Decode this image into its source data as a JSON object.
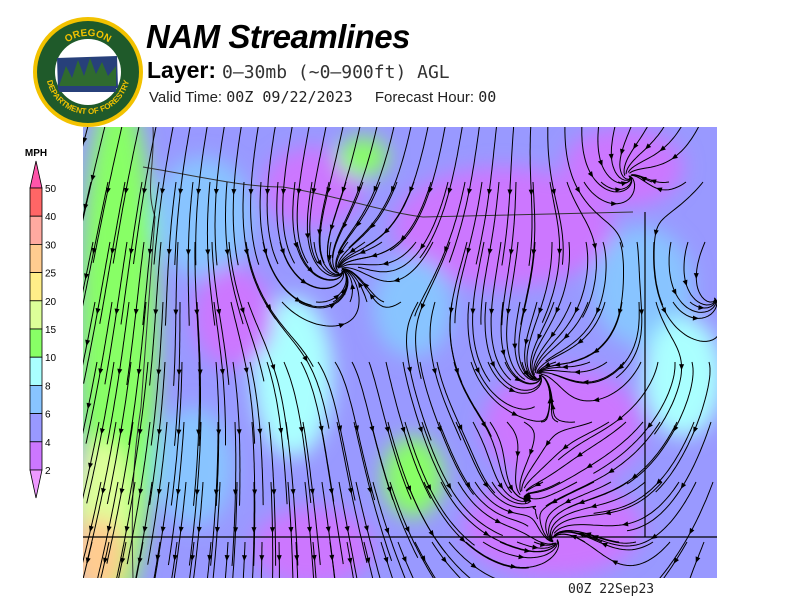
{
  "header": {
    "logo_text_top": "OREGON",
    "logo_text_bottom": "DEPARTMENT OF FORESTRY",
    "title": "NAM Streamlines",
    "layer_label": "Layer:",
    "layer_value": "0–30mb (~0–900ft) AGL",
    "valid_time_label": "Valid Time:",
    "valid_time_value": "00Z 09/22/2023",
    "forecast_hour_label": "Forecast Hour:",
    "forecast_hour_value": "00"
  },
  "legend": {
    "unit": "MPH",
    "levels": [
      "50",
      "40",
      "30",
      "25",
      "20",
      "15",
      "10",
      "8",
      "6",
      "4",
      "2"
    ],
    "colors": {
      "above_max": "#ff55aa",
      "40-50": "#ff6666",
      "30-40": "#ffaaa0",
      "25-30": "#ffcc90",
      "20-25": "#ffee88",
      "15-20": "#ddff99",
      "10-15": "#88ff66",
      "8-10": "#aaffff",
      "6-8": "#88c4ff",
      "4-6": "#9999ff",
      "2-4": "#cc77ff",
      "below_min": "#ee99ff"
    }
  },
  "map": {
    "region": "Oregon",
    "stamp": "00Z 22Sep23"
  }
}
